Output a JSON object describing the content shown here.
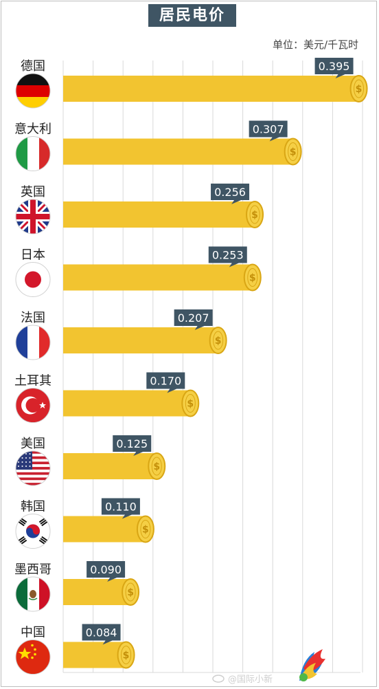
{
  "header": {
    "title": "居民电价",
    "unit": "单位：美元/千瓦时"
  },
  "watermark": {
    "text": "@国际小新"
  },
  "colors": {
    "bar": "#f2c430",
    "label_bg": "#3f5564",
    "grid": "#d8d8d8"
  },
  "chart_data": {
    "type": "bar",
    "orientation": "horizontal",
    "title": "居民电价",
    "unit": "单位：美元/千瓦时",
    "categories": [
      "德国",
      "意大利",
      "英国",
      "日本",
      "法国",
      "土耳其",
      "美国",
      "韩国",
      "墨西哥",
      "中国"
    ],
    "values": [
      0.395,
      0.307,
      0.256,
      0.253,
      0.207,
      0.17,
      0.125,
      0.11,
      0.09,
      0.084
    ],
    "value_labels": [
      "0.395",
      "0.307",
      "0.256",
      "0.253",
      "0.207",
      "0.170",
      "0.125",
      "0.110",
      "0.090",
      "0.084"
    ],
    "flags": [
      "germany",
      "italy",
      "uk",
      "japan",
      "france",
      "turkey",
      "usa",
      "south-korea",
      "mexico",
      "china"
    ],
    "grid": true
  }
}
